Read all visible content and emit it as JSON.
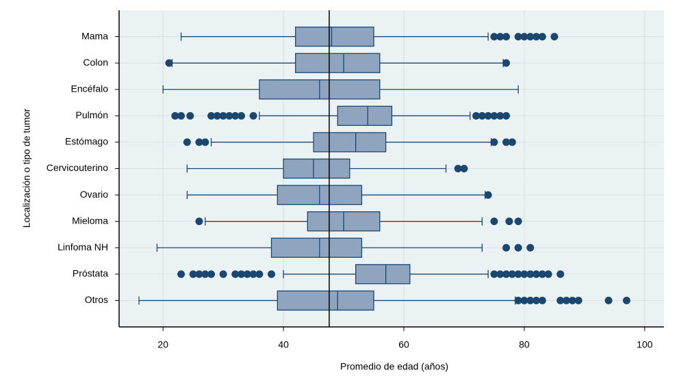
{
  "chart_data": {
    "type": "boxplot",
    "xlabel": "Promedio de edad (años)",
    "ylabel": "Localización o tipo de tumor",
    "categories": [
      "Mama",
      "Colon",
      "Encéfalo",
      "Pulmón",
      "Estómago",
      "Cervicouterino",
      "Ovario",
      "Mieloma",
      "Linfoma NH",
      "Próstata",
      "Otros"
    ],
    "boxes": [
      {
        "whisker_low": 23,
        "q1": 42,
        "median": 48,
        "q3": 55,
        "whisker_high": 74,
        "outliers": [
          75,
          76,
          77,
          79,
          80,
          81,
          82,
          83,
          85
        ]
      },
      {
        "whisker_low": 21.5,
        "q1": 42,
        "median": 50,
        "q3": 56,
        "whisker_high": 76.5,
        "outliers": [
          21,
          77
        ]
      },
      {
        "whisker_low": 20,
        "q1": 36,
        "median": 46,
        "q3": 56,
        "whisker_high": 79,
        "outliers": []
      },
      {
        "whisker_low": 36,
        "q1": 49,
        "median": 54,
        "q3": 58,
        "whisker_high": 71,
        "outliers": [
          22,
          23,
          24.5,
          28,
          29,
          30,
          31,
          32,
          33,
          35,
          72,
          73,
          74,
          75,
          76,
          77
        ]
      },
      {
        "whisker_low": 28,
        "q1": 45,
        "median": 52,
        "q3": 57,
        "whisker_high": 74.5,
        "outliers": [
          24,
          26,
          27,
          75,
          77,
          78
        ]
      },
      {
        "whisker_low": 24,
        "q1": 40,
        "median": 45,
        "q3": 51,
        "whisker_high": 67,
        "outliers": [
          69,
          70
        ]
      },
      {
        "whisker_low": 24,
        "q1": 39,
        "median": 46,
        "q3": 53,
        "whisker_high": 73.5,
        "outliers": [
          74
        ]
      },
      {
        "whisker_low": 27,
        "q1": 44,
        "median": 50,
        "q3": 56,
        "whisker_high": 73,
        "outliers": [
          26,
          75,
          77.5,
          79
        ]
      },
      {
        "whisker_low": 19,
        "q1": 38,
        "median": 46,
        "q3": 53,
        "whisker_high": 73,
        "outliers": [
          77,
          79,
          81
        ]
      },
      {
        "whisker_low": 40,
        "q1": 52,
        "median": 57,
        "q3": 61,
        "whisker_high": 74,
        "outliers": [
          23,
          25,
          26,
          27,
          28,
          30,
          32,
          33,
          34,
          35,
          36,
          38,
          75,
          76,
          77,
          78,
          79,
          80,
          81,
          82,
          83,
          84,
          86
        ]
      },
      {
        "whisker_low": 16,
        "q1": 39,
        "median": 49,
        "q3": 55,
        "whisker_high": 78.5,
        "outliers": [
          79,
          80,
          81,
          82,
          83,
          86,
          87,
          88,
          89,
          94,
          97
        ]
      }
    ],
    "reference_line": 47.6,
    "xlim": [
      12.7,
      103.2
    ],
    "xticks": [
      20,
      40,
      60,
      80,
      100
    ],
    "grid": true,
    "box_color": "#8fa4bf",
    "line_color": "#1a476f",
    "background": "#eaf2f3"
  }
}
